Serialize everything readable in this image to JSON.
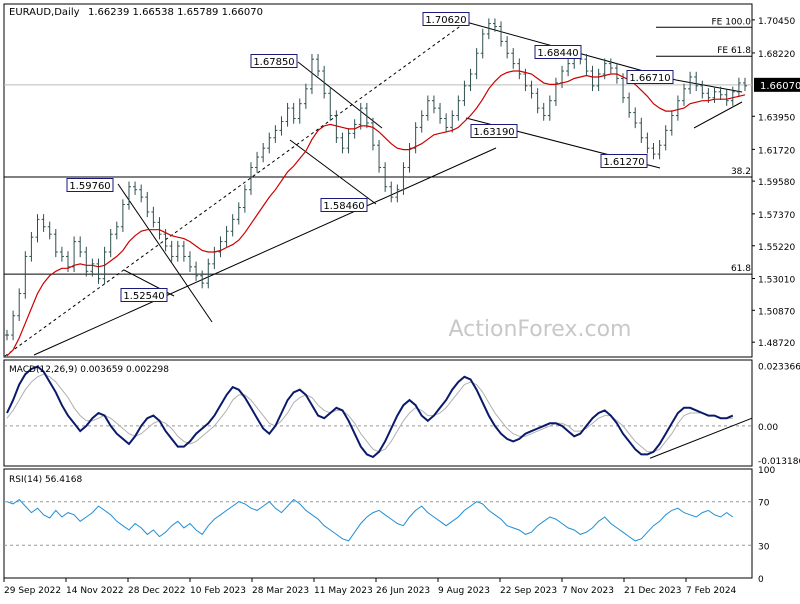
{
  "header": {
    "symbol": "EURAUD,Daily",
    "ohlc": "1.66239 1.66538 1.65789 1.66070"
  },
  "watermark": "ActionForex.com",
  "colors": {
    "price_bar": "#2f4f4f",
    "ema": "#cc0000",
    "macd_line": "#0a1a6b",
    "macd_signal": "#b0b0b0",
    "rsi": "#1f8fd6",
    "label_border": "#1a1a7a",
    "current_price_bg": "#000000"
  },
  "chart_data": [
    {
      "type": "line",
      "panel": "price",
      "title": "EURAUD,Daily",
      "ylim": [
        1.4772,
        1.7152
      ],
      "yticks": [
        "1.70450",
        "1.68220",
        "1.66070",
        "1.63950",
        "1.61720",
        "1.59580",
        "1.57370",
        "1.55220",
        "1.53010",
        "1.50870",
        "1.48720"
      ],
      "current_price": "1.66070",
      "x_labels": [
        "29 Sep 2022",
        "14 Nov 2022",
        "28 Dec 2022",
        "10 Feb 2023",
        "28 Mar 2023",
        "11 May 2023",
        "26 Jun 2023",
        "9 Aug 2023",
        "22 Sep 2023",
        "7 Nov 2023",
        "21 Dec 2023",
        "7 Feb 2024"
      ],
      "series": [
        {
          "kind": "close",
          "values": [
            1.492,
            1.505,
            1.52,
            1.545,
            1.558,
            1.57,
            1.565,
            1.56,
            1.548,
            1.545,
            1.538,
            1.555,
            1.548,
            1.535,
            1.54,
            1.53,
            1.548,
            1.56,
            1.565,
            1.58,
            1.592,
            1.59,
            1.585,
            1.575,
            1.568,
            1.56,
            1.552,
            1.545,
            1.552,
            1.545,
            1.538,
            1.532,
            1.527,
            1.54,
            1.548,
            1.555,
            1.562,
            1.57,
            1.578,
            1.59,
            1.605,
            1.612,
            1.618,
            1.625,
            1.63,
            1.636,
            1.645,
            1.638,
            1.648,
            1.658,
            1.678,
            1.67,
            1.655,
            1.64,
            1.625,
            1.618,
            1.628,
            1.634,
            1.645,
            1.635,
            1.62,
            1.605,
            1.592,
            1.585,
            1.59,
            1.605,
            1.618,
            1.632,
            1.64,
            1.65,
            1.645,
            1.638,
            1.632,
            1.64,
            1.65,
            1.66,
            1.668,
            1.682,
            1.695,
            1.702,
            1.7,
            1.69,
            1.682,
            1.675,
            1.668,
            1.66,
            1.655,
            1.645,
            1.64,
            1.65,
            1.662,
            1.67,
            1.675,
            1.68,
            1.678,
            1.67,
            1.66,
            1.668,
            1.675,
            1.672,
            1.665,
            1.652,
            1.642,
            1.635,
            1.625,
            1.618,
            1.614,
            1.62,
            1.63,
            1.64,
            1.65,
            1.658,
            1.666,
            1.66,
            1.655,
            1.652,
            1.656,
            1.654,
            1.65,
            1.656,
            1.662,
            1.66
          ]
        },
        {
          "kind": "ema",
          "values": [
            1.478,
            1.482,
            1.49,
            1.5,
            1.51,
            1.52,
            1.527,
            1.532,
            1.535,
            1.537,
            1.537,
            1.539,
            1.54,
            1.539,
            1.539,
            1.538,
            1.539,
            1.542,
            1.545,
            1.549,
            1.555,
            1.559,
            1.562,
            1.563,
            1.563,
            1.563,
            1.561,
            1.559,
            1.558,
            1.557,
            1.555,
            1.552,
            1.549,
            1.548,
            1.548,
            1.549,
            1.551,
            1.553,
            1.556,
            1.561,
            1.567,
            1.573,
            1.579,
            1.585,
            1.59,
            1.596,
            1.602,
            1.606,
            1.611,
            1.616,
            1.624,
            1.63,
            1.633,
            1.634,
            1.633,
            1.632,
            1.631,
            1.631,
            1.633,
            1.633,
            1.632,
            1.629,
            1.625,
            1.621,
            1.618,
            1.617,
            1.617,
            1.619,
            1.621,
            1.624,
            1.627,
            1.628,
            1.629,
            1.63,
            1.632,
            1.636,
            1.64,
            1.645,
            1.651,
            1.658,
            1.663,
            1.667,
            1.669,
            1.67,
            1.67,
            1.669,
            1.668,
            1.665,
            1.662,
            1.661,
            1.661,
            1.662,
            1.663,
            1.665,
            1.666,
            1.667,
            1.666,
            1.666,
            1.667,
            1.668,
            1.668,
            1.666,
            1.664,
            1.661,
            1.657,
            1.653,
            1.648,
            1.645,
            1.643,
            1.643,
            1.644,
            1.645,
            1.648,
            1.649,
            1.65,
            1.65,
            1.651,
            1.651,
            1.651,
            1.652,
            1.653,
            1.654
          ]
        }
      ],
      "annotations": [
        "1.70620",
        "1.67850",
        "1.68440",
        "1.66710",
        "1.63190",
        "1.61270",
        "1.59760",
        "1.58460",
        "1.52540"
      ],
      "fib_labels": [
        "FE 100.0",
        "FE 61.8",
        "38.2",
        "61.8"
      ]
    },
    {
      "type": "line",
      "panel": "macd",
      "title": "MACD(12,26,9) 0.003659 0.002298",
      "ylim": [
        -0.0155,
        0.0255
      ],
      "yticks": [
        "0.023366",
        "0.00",
        "-0.013186"
      ],
      "series": [
        {
          "kind": "macd",
          "values": [
            0.005,
            0.01,
            0.016,
            0.02,
            0.022,
            0.023,
            0.021,
            0.017,
            0.013,
            0.008,
            0.004,
            0.001,
            -0.002,
            0.0,
            0.003,
            0.005,
            0.004,
            0.0,
            -0.003,
            -0.005,
            -0.007,
            -0.004,
            0.0,
            0.003,
            0.004,
            0.002,
            -0.002,
            -0.005,
            -0.008,
            -0.008,
            -0.006,
            -0.003,
            -0.001,
            0.001,
            0.004,
            0.008,
            0.012,
            0.015,
            0.014,
            0.011,
            0.007,
            0.003,
            -0.001,
            -0.003,
            0.0,
            0.005,
            0.01,
            0.013,
            0.014,
            0.012,
            0.008,
            0.004,
            0.003,
            0.005,
            0.007,
            0.006,
            0.002,
            -0.003,
            -0.008,
            -0.011,
            -0.012,
            -0.01,
            -0.006,
            -0.001,
            0.004,
            0.008,
            0.01,
            0.008,
            0.004,
            0.002,
            0.004,
            0.007,
            0.01,
            0.014,
            0.017,
            0.019,
            0.018,
            0.014,
            0.009,
            0.004,
            0.0,
            -0.003,
            -0.005,
            -0.006,
            -0.005,
            -0.003,
            -0.002,
            -0.001,
            0.0,
            0.001,
            0.001,
            0.0,
            -0.002,
            -0.004,
            -0.003,
            0.0,
            0.003,
            0.005,
            0.006,
            0.004,
            0.001,
            -0.003,
            -0.006,
            -0.009,
            -0.011,
            -0.011,
            -0.01,
            -0.007,
            -0.003,
            0.001,
            0.005,
            0.007,
            0.007,
            0.006,
            0.005,
            0.004,
            0.004,
            0.003,
            0.003,
            0.004
          ]
        },
        {
          "kind": "signal",
          "values": [
            0.003,
            0.006,
            0.01,
            0.014,
            0.017,
            0.019,
            0.02,
            0.019,
            0.017,
            0.014,
            0.011,
            0.007,
            0.004,
            0.002,
            0.002,
            0.003,
            0.004,
            0.003,
            0.001,
            -0.001,
            -0.003,
            -0.004,
            -0.003,
            -0.001,
            0.001,
            0.002,
            0.001,
            -0.001,
            -0.004,
            -0.006,
            -0.007,
            -0.006,
            -0.004,
            -0.002,
            0.0,
            0.003,
            0.006,
            0.01,
            0.012,
            0.012,
            0.01,
            0.007,
            0.004,
            0.001,
            0.0,
            0.002,
            0.005,
            0.009,
            0.011,
            0.012,
            0.011,
            0.008,
            0.006,
            0.005,
            0.006,
            0.006,
            0.004,
            0.001,
            -0.003,
            -0.006,
            -0.009,
            -0.01,
            -0.009,
            -0.006,
            -0.002,
            0.002,
            0.005,
            0.007,
            0.006,
            0.004,
            0.004,
            0.005,
            0.007,
            0.01,
            0.013,
            0.016,
            0.017,
            0.016,
            0.013,
            0.009,
            0.005,
            0.002,
            -0.001,
            -0.003,
            -0.004,
            -0.004,
            -0.003,
            -0.002,
            -0.001,
            0.0,
            0.001,
            0.001,
            0.0,
            -0.002,
            -0.002,
            -0.001,
            0.001,
            0.003,
            0.004,
            0.004,
            0.002,
            0.0,
            -0.003,
            -0.006,
            -0.008,
            -0.01,
            -0.01,
            -0.009,
            -0.006,
            -0.003,
            0.001,
            0.004,
            0.005,
            0.005,
            0.005,
            0.004,
            0.004,
            0.003,
            0.003,
            0.003
          ]
        }
      ]
    },
    {
      "type": "line",
      "panel": "rsi",
      "title": "RSI(14) 56.4168",
      "ylim": [
        0,
        100
      ],
      "yticks": [
        "100",
        "70",
        "30",
        "0"
      ],
      "series": [
        {
          "kind": "rsi",
          "values": [
            70,
            68,
            72,
            66,
            60,
            64,
            58,
            55,
            62,
            56,
            60,
            58,
            52,
            56,
            60,
            66,
            62,
            58,
            52,
            48,
            44,
            50,
            46,
            40,
            44,
            38,
            42,
            48,
            52,
            46,
            50,
            44,
            40,
            48,
            54,
            58,
            62,
            66,
            70,
            68,
            64,
            62,
            66,
            70,
            64,
            60,
            66,
            72,
            68,
            62,
            58,
            54,
            48,
            44,
            40,
            36,
            34,
            42,
            50,
            56,
            60,
            62,
            58,
            54,
            50,
            48,
            56,
            62,
            66,
            60,
            56,
            52,
            48,
            52,
            56,
            62,
            66,
            70,
            68,
            62,
            58,
            54,
            48,
            46,
            44,
            40,
            42,
            48,
            52,
            56,
            54,
            50,
            46,
            44,
            40,
            42,
            46,
            52,
            56,
            50,
            46,
            42,
            38,
            34,
            36,
            42,
            48,
            52,
            58,
            62,
            64,
            60,
            58,
            56,
            60,
            62,
            58,
            56,
            60,
            56
          ]
        }
      ]
    }
  ]
}
